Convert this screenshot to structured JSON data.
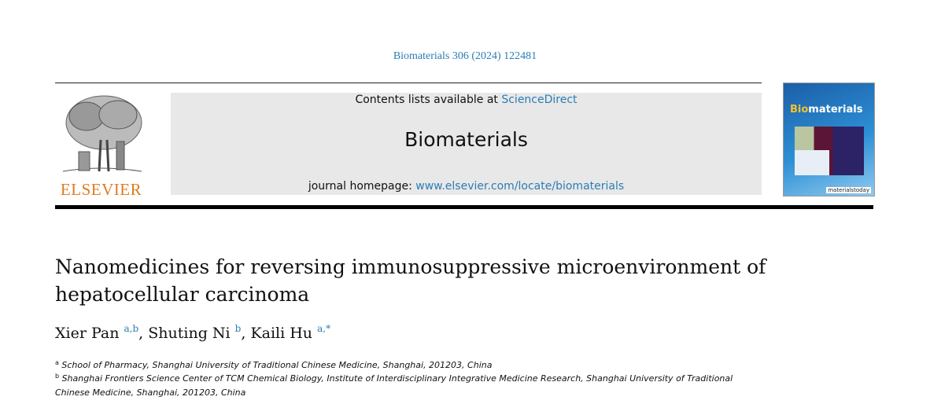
{
  "journal_ref": "Biomaterials 306 (2024) 122481",
  "header": {
    "contents_prefix": "Contents lists available at ",
    "contents_link": "ScienceDirect",
    "journal_title": "Biomaterials",
    "homepage_prefix": "journal homepage: ",
    "homepage_link": "www.elsevier.com/locate/biomaterials",
    "publisher_logo": "ELSEVIER",
    "cover": {
      "title_bio": "Bio",
      "title_rest": "materials",
      "footer": "materialstoday"
    }
  },
  "article": {
    "title": "Nanomedicines for reversing immunosuppressive microenvironment of hepatocellular carcinoma",
    "authors": [
      {
        "name": "Xier Pan",
        "sup": "a,b",
        "sep": ", "
      },
      {
        "name": "Shuting Ni",
        "sup": "b",
        "sep": ", "
      },
      {
        "name": "Kaili Hu",
        "sup": "a,*",
        "sep": ""
      }
    ],
    "affiliations": [
      {
        "mark": "a",
        "text": "School of Pharmacy, Shanghai University of Traditional Chinese Medicine, Shanghai, 201203, China"
      },
      {
        "mark": "b",
        "text": "Shanghai Frontiers Science Center of TCM Chemical Biology, Institute of Interdisciplinary Integrative Medicine Research, Shanghai University of Traditional Chinese Medicine, Shanghai, 201203, China"
      }
    ]
  },
  "colors": {
    "link": "#2a7db5",
    "elsevier_orange": "#e07b20",
    "header_box": "#e8e8e8"
  }
}
